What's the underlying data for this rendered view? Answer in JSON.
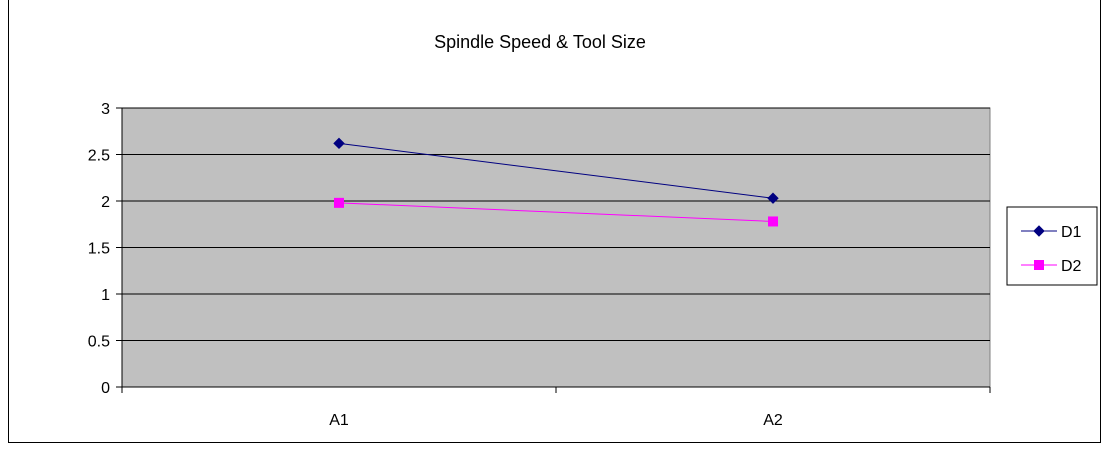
{
  "chart_data": {
    "type": "line",
    "title": "Spindle Speed & Tool Size",
    "categories": [
      "A1",
      "A2"
    ],
    "series": [
      {
        "name": "D1",
        "values": [
          2.62,
          2.03
        ],
        "color": "#000080",
        "marker": "diamond"
      },
      {
        "name": "D2",
        "values": [
          1.98,
          1.78
        ],
        "color": "#ff00ff",
        "marker": "square"
      }
    ],
    "yticks": [
      "0",
      "0.5",
      "1",
      "1.5",
      "2",
      "2.5",
      "3"
    ],
    "ylim": [
      0,
      3
    ],
    "grid": true,
    "plot_background": "#c0c0c0",
    "legend_position": "right"
  }
}
